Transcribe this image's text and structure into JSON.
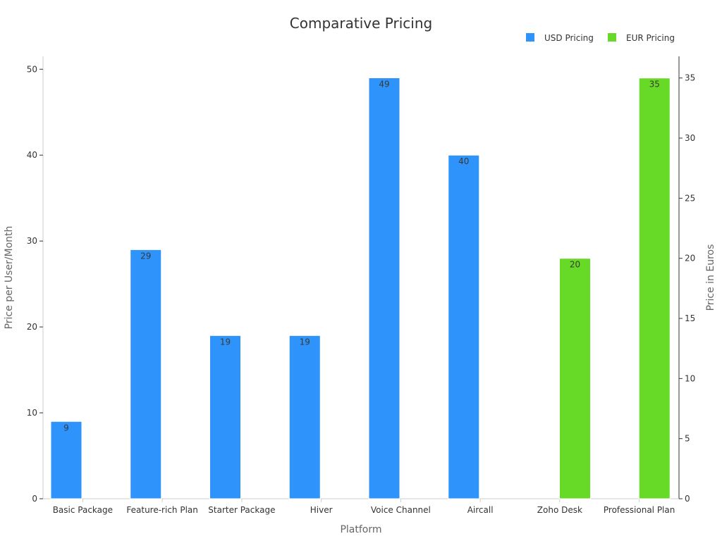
{
  "chart_data": {
    "type": "bar",
    "title": "Comparative Pricing",
    "xlabel": "Platform",
    "ylabel_left": "Price per User/Month",
    "ylabel_right": "Price in Euros",
    "ylim_left": [
      0,
      51.5
    ],
    "ylim_right": [
      0,
      36.8
    ],
    "yticks_left": [
      0,
      10,
      20,
      30,
      40,
      50
    ],
    "yticks_right": [
      0,
      5,
      10,
      15,
      20,
      25,
      30,
      35
    ],
    "legend_position": "top-right",
    "categories": [
      "Basic Package",
      "Feature-rich Plan",
      "Starter Package",
      "Hiver",
      "Voice Channel",
      "Aircall",
      "Zoho Desk",
      "Professional Plan"
    ],
    "series": [
      {
        "name": "USD Pricing",
        "axis": "left",
        "color": "#2e93fa",
        "values": [
          9,
          29,
          19,
          19,
          49,
          40,
          null,
          null
        ]
      },
      {
        "name": "EUR Pricing",
        "axis": "right",
        "color": "#66da26",
        "values": [
          null,
          null,
          null,
          null,
          null,
          null,
          20,
          35
        ]
      }
    ]
  }
}
